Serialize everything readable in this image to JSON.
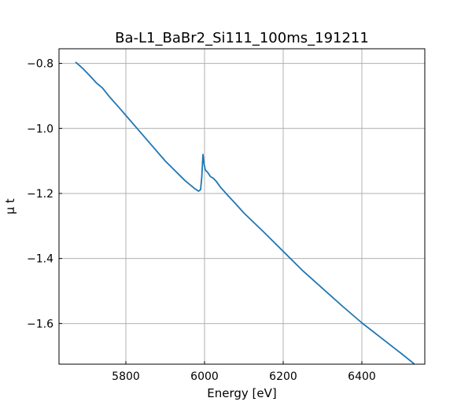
{
  "chart_data": {
    "type": "line",
    "title": "Ba-L1_BaBr2_Si111_100ms_191211",
    "xlabel": "Energy [eV]",
    "ylabel": "μ t",
    "xlim": [
      5630,
      6560
    ],
    "ylim": [
      -1.725,
      -0.755
    ],
    "xticks": [
      5800,
      6000,
      6200,
      6400
    ],
    "xtick_labels": [
      "5800",
      "6000",
      "6200",
      "6400"
    ],
    "yticks": [
      -0.8,
      -1.0,
      -1.2,
      -1.4,
      -1.6
    ],
    "ytick_labels": [
      "−0.8",
      "−1.0",
      "−1.2",
      "−1.4",
      "−1.6"
    ],
    "grid": true,
    "line_color": "#1f77b4",
    "series": [
      {
        "x": [
          5673,
          5690,
          5710,
          5725,
          5740,
          5760,
          5780,
          5800,
          5850,
          5900,
          5950,
          5975,
          5985,
          5990,
          5993,
          5996,
          5999,
          6002,
          6008,
          6015,
          6022,
          6030,
          6040,
          6060,
          6080,
          6100,
          6150,
          6200,
          6250,
          6300,
          6350,
          6400,
          6450,
          6500,
          6532
        ],
        "y": [
          -0.797,
          -0.815,
          -0.84,
          -0.86,
          -0.875,
          -0.905,
          -0.932,
          -0.96,
          -1.03,
          -1.1,
          -1.16,
          -1.185,
          -1.193,
          -1.188,
          -1.15,
          -1.08,
          -1.11,
          -1.128,
          -1.135,
          -1.148,
          -1.153,
          -1.163,
          -1.18,
          -1.207,
          -1.233,
          -1.26,
          -1.318,
          -1.378,
          -1.438,
          -1.492,
          -1.546,
          -1.598,
          -1.645,
          -1.692,
          -1.723
        ]
      }
    ]
  }
}
